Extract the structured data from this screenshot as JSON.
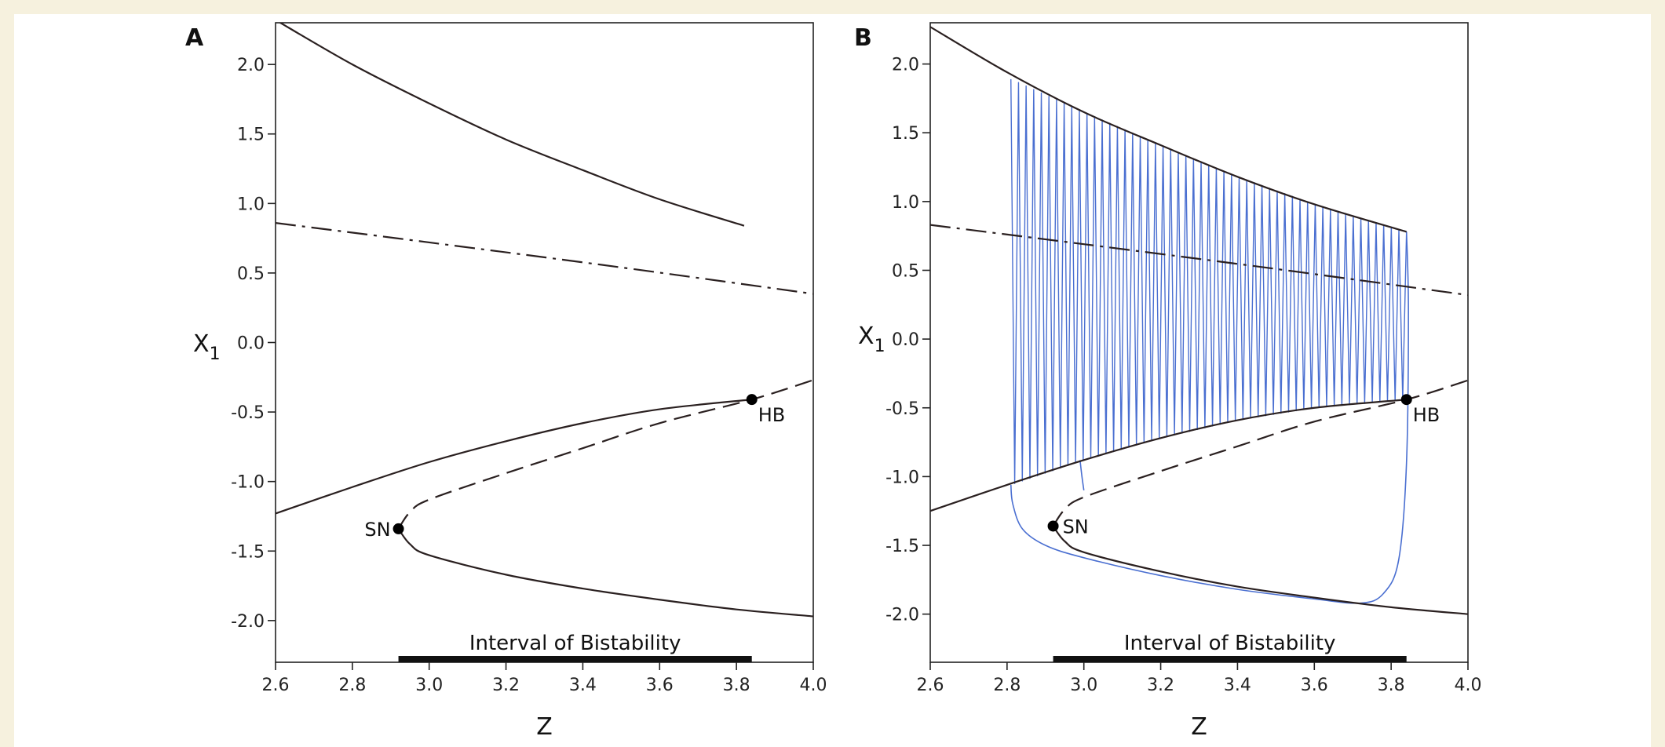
{
  "chart_data": [
    {
      "panel": "A",
      "type": "line",
      "xlabel": "Z",
      "ylabel": "X",
      "ylabel_sub": "1",
      "xlim": [
        2.6,
        4.0
      ],
      "ylim": [
        -2.3,
        2.3
      ],
      "xticks": [
        2.6,
        2.8,
        3.0,
        3.2,
        3.4,
        3.6,
        3.8,
        4.0
      ],
      "xtick_labels": [
        "2.6",
        "2.8",
        "3.0",
        "3.2",
        "3.4",
        "3.6",
        "3.8",
        "4.0"
      ],
      "yticks": [
        2.0,
        1.5,
        1.0,
        0.5,
        0.0,
        -0.5,
        -1.0,
        -1.5,
        -2.0
      ],
      "ytick_labels": [
        "2.0",
        "1.5",
        "1.0",
        "0.5",
        "0.0",
        "-0.5",
        "-1.0",
        "-1.5",
        "-2.0"
      ],
      "grid": false,
      "series": [
        {
          "style": "solid",
          "x": [
            2.6,
            2.8,
            3.0,
            3.2,
            3.4,
            3.6,
            3.82
          ],
          "y": [
            2.32,
            2.0,
            1.72,
            1.46,
            1.24,
            1.03,
            0.84
          ]
        },
        {
          "style": "dashdot",
          "x": [
            2.6,
            3.0,
            3.5,
            4.0
          ],
          "y": [
            0.86,
            0.72,
            0.54,
            0.35
          ]
        },
        {
          "style": "solid",
          "x": [
            2.6,
            2.8,
            3.0,
            3.2,
            3.4,
            3.6,
            3.84
          ],
          "y": [
            -1.23,
            -1.04,
            -0.86,
            -0.71,
            -0.58,
            -0.48,
            -0.41
          ]
        },
        {
          "style": "dashed",
          "x": [
            2.92,
            2.95,
            3.0,
            3.2,
            3.4,
            3.6,
            3.84,
            4.0
          ],
          "y": [
            -1.34,
            -1.22,
            -1.13,
            -0.94,
            -0.76,
            -0.58,
            -0.41,
            -0.27
          ]
        },
        {
          "style": "solid",
          "x": [
            2.92,
            2.95,
            3.0,
            3.2,
            3.4,
            3.6,
            3.8,
            4.0
          ],
          "y": [
            -1.34,
            -1.45,
            -1.53,
            -1.67,
            -1.77,
            -1.85,
            -1.92,
            -1.97
          ]
        }
      ],
      "points": [
        {
          "label": "HB",
          "x": 3.84,
          "y": -0.41
        },
        {
          "label": "SN",
          "x": 2.92,
          "y": -1.34
        }
      ],
      "interval": {
        "label": "Interval of Bistability",
        "x": [
          2.92,
          3.84
        ]
      }
    },
    {
      "panel": "B",
      "type": "line",
      "xlabel": "Z",
      "ylabel": "X",
      "ylabel_sub": "1",
      "xlim": [
        2.6,
        4.0
      ],
      "ylim": [
        -2.35,
        2.3
      ],
      "xticks": [
        2.6,
        2.8,
        3.0,
        3.2,
        3.4,
        3.6,
        3.8,
        4.0
      ],
      "xtick_labels": [
        "2.6",
        "2.8",
        "3.0",
        "3.2",
        "3.4",
        "3.6",
        "3.8",
        "4.0"
      ],
      "yticks": [
        2.0,
        1.5,
        1.0,
        0.5,
        0.0,
        -0.5,
        -1.0,
        -1.5,
        -2.0
      ],
      "ytick_labels": [
        "2.0",
        "1.5",
        "1.0",
        "0.5",
        "0.0",
        "-0.5",
        "-1.0",
        "-1.5",
        "-2.0"
      ],
      "grid": false,
      "series": [
        {
          "style": "solid",
          "x": [
            2.6,
            2.8,
            3.0,
            3.2,
            3.4,
            3.6,
            3.84
          ],
          "y": [
            2.27,
            1.94,
            1.65,
            1.41,
            1.18,
            0.98,
            0.78
          ]
        },
        {
          "style": "dashdot",
          "x": [
            2.6,
            3.0,
            3.5,
            4.0
          ],
          "y": [
            0.83,
            0.69,
            0.51,
            0.32
          ]
        },
        {
          "style": "solid",
          "x": [
            2.6,
            2.8,
            3.0,
            3.2,
            3.4,
            3.6,
            3.84
          ],
          "y": [
            -1.25,
            -1.06,
            -0.88,
            -0.72,
            -0.59,
            -0.5,
            -0.44
          ]
        },
        {
          "style": "dashed",
          "x": [
            2.92,
            2.95,
            3.0,
            3.2,
            3.4,
            3.6,
            3.84,
            4.0
          ],
          "y": [
            -1.36,
            -1.24,
            -1.15,
            -0.96,
            -0.78,
            -0.6,
            -0.44,
            -0.3
          ]
        },
        {
          "style": "solid",
          "x": [
            2.92,
            2.95,
            3.0,
            3.2,
            3.4,
            3.6,
            3.8,
            4.0
          ],
          "y": [
            -1.36,
            -1.47,
            -1.55,
            -1.69,
            -1.8,
            -1.88,
            -1.95,
            -2.0
          ]
        }
      ],
      "oscillation": {
        "color": "#4a6fd1",
        "z_start": 2.81,
        "z_end": 3.84,
        "cycles": 52,
        "upper": {
          "x": [
            2.81,
            3.0,
            3.2,
            3.4,
            3.6,
            3.84
          ],
          "y": [
            1.89,
            1.65,
            1.41,
            1.18,
            0.98,
            0.78
          ]
        },
        "lower": {
          "x": [
            2.81,
            3.0,
            3.2,
            3.4,
            3.6,
            3.84
          ],
          "y": [
            -1.06,
            -0.88,
            -0.72,
            -0.59,
            -0.5,
            -0.44
          ]
        },
        "drop_path": {
          "x": [
            3.84,
            3.845,
            3.84,
            3.82,
            3.78,
            3.72,
            3.6,
            3.4,
            3.2,
            3.0,
            2.9,
            2.84,
            2.815,
            2.81
          ],
          "y": [
            0.78,
            0.2,
            -0.9,
            -1.6,
            -1.85,
            -1.92,
            -1.89,
            -1.82,
            -1.72,
            -1.59,
            -1.5,
            -1.38,
            -1.2,
            -1.06
          ]
        },
        "stray_path": {
          "x": [
            2.99,
            2.995,
            3.0
          ],
          "y": [
            -0.88,
            -1.0,
            -1.1
          ]
        }
      },
      "points": [
        {
          "label": "HB",
          "x": 3.84,
          "y": -0.44
        },
        {
          "label": "SN",
          "x": 2.92,
          "y": -1.36
        }
      ],
      "interval": {
        "label": "Interval of Bistability",
        "x": [
          2.92,
          3.84
        ]
      }
    }
  ]
}
